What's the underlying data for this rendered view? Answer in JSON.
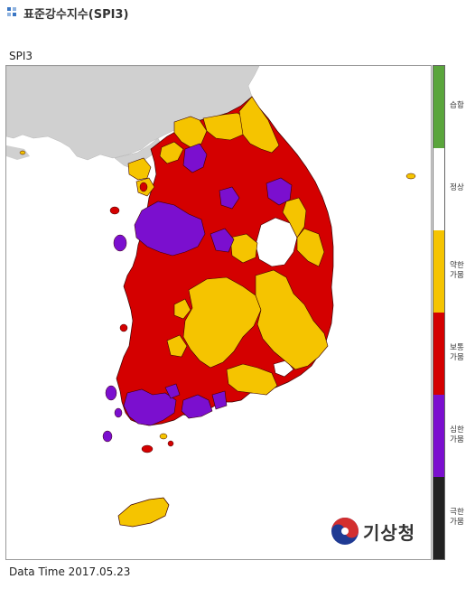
{
  "page": {
    "title": "표준강수지수(SPI3)"
  },
  "map": {
    "label": "SPI3",
    "data_time": "Data Time 2017.05.23"
  },
  "legend": [
    {
      "label": "습함",
      "color": "#5aa53c"
    },
    {
      "label": "정상",
      "color": "#ffffff"
    },
    {
      "label": "약한\n가뭄",
      "color": "#f5c400"
    },
    {
      "label": "보통\n가뭄",
      "color": "#d40000"
    },
    {
      "label": "심한\n가뭄",
      "color": "#7b0fcf"
    },
    {
      "label": "극한\n가뭄",
      "color": "#222222"
    }
  ],
  "logo": {
    "text": "기상청"
  },
  "colors": {
    "land_background": "#d0d0d0",
    "region_border": "#3a0000"
  }
}
